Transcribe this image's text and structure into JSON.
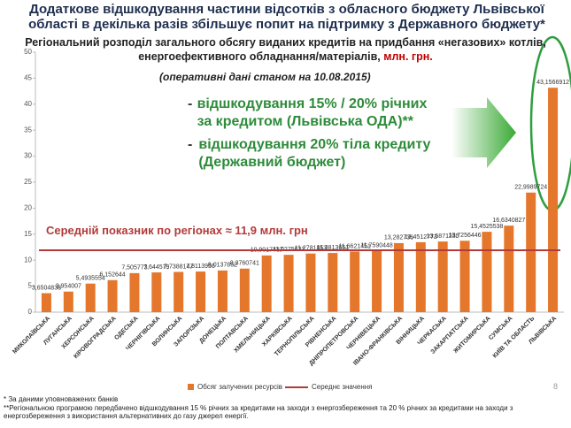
{
  "header": {
    "title": "Додаткове відшкодування частини відсотків з обласного бюджету Львівської області в декілька разів збільшує попит на підтримку з Державного бюджету*",
    "subtitle": "Регіональний розподіл загального обсягу виданих кредитів на придбання «негазових» котлів,  енергоефективного обладнання/матеріалів,",
    "subtitle_unit": "млн. грн.",
    "date_note": "(оперативні дані станом на 10.08.2015)"
  },
  "callout": {
    "bullets": [
      "відшкодування 15% / 20% річних за кредитом (Львівська ОДА)**",
      "відшкодування 20% тіла кредиту (Державний бюджет)"
    ]
  },
  "chart_data": {
    "type": "bar",
    "categories": [
      "МИКОЛАЇВСЬКА",
      "ЛУГАНСЬКА",
      "ХЕРСОНСЬКА",
      "КІРОВОГРАДСЬКА",
      "ОДЕСЬКА",
      "ЧЕРНІГІВСЬКА",
      "ВОЛИНСЬКА",
      "ЗАПОРІЗЬКА",
      "ДОНЕЦЬКА",
      "ПОЛТАВСЬКА",
      "ХМЕЛЬНИЦЬКА",
      "ХАРКІВСЬКА",
      "ТЕРНОПІЛЬСЬКА",
      "РІВНЕНСЬКА",
      "ДНІПРОПЕТРОВСЬКА",
      "ЧЕРНІВЕЦЬКА",
      "ІВАНО-ФРАНКІВСЬКА",
      "ВІННИЦЬКА",
      "ЧЕРКАСЬКА",
      "ЗАКАРПАТСЬКА",
      "ЖИТОМИРСЬКА",
      "СУМСЬКА",
      "КИЇВ ТА ОБЛАСТЬ",
      "ЛЬВІВСЬКА"
    ],
    "series": [
      {
        "name": "Обсяг залучених ресурсів",
        "color": "#e4772b",
        "values": [
          3.6504838,
          3.954007,
          5.4935554,
          6.152644,
          7.505773,
          7.644579,
          7.7388147,
          7.8113956,
          8.0137852,
          8.3760741,
          10.9017437,
          11.0275633,
          11.2781853,
          11.3813651,
          11.6621451,
          11.7590448,
          13.282736,
          13.4512773,
          13.5871235,
          13.7256446,
          15.4525538,
          16.6340827,
          22.9989724,
          43.1566912
        ],
        "value_labels": [
          "3,6504838",
          "3,954007",
          "5,4935554",
          "6,152644",
          "7,505773",
          "7,644579",
          "7,7388147",
          "7,8113956",
          "8,0137852",
          "8,3760741",
          "10,9017437",
          "11,0275633",
          "11,2781853",
          "11,3813651",
          "11,6621451",
          "11,7590448",
          "13,282736",
          "13,4512773",
          "13,5871235",
          "13,7256446",
          "15,4525538",
          "16,6340827",
          "22,9989724",
          "43,1566912"
        ]
      }
    ],
    "average": {
      "name": "Середнє значення",
      "value": 11.9,
      "color": "#b33a3a",
      "annotation": "Середній показник по регіонах ≈ 11,9 млн. грн"
    },
    "ylim": [
      0,
      50
    ],
    "yticks": [
      0,
      5,
      10,
      15,
      20,
      25,
      30,
      35,
      40,
      45,
      50
    ],
    "grid": false
  },
  "footnotes": [
    "* За даними уповноважених банків",
    "**Регіональною програмою передбачено відшкодування 15 % річних за кредитами на заходи з енергозбереження та 20 % річних за кредитами на заходи з енергозбереження з використання альтернативних до газу джерел енергії."
  ],
  "page_number": "8"
}
